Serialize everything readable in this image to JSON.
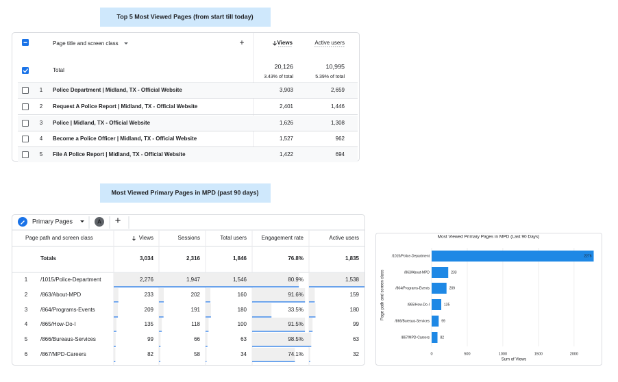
{
  "banner1": "Top 5 Most Viewed Pages (from start till today)",
  "table1": {
    "headers": [
      "Page title and screen class",
      "Views",
      "Active users"
    ],
    "total": {
      "label": "Total",
      "views": "20,126",
      "views_pct": "3.43% of total",
      "users": "10,995",
      "users_pct": "5.39% of total"
    },
    "rows": [
      [
        "1",
        "Police Department | Midland, TX - Official Website",
        "3,903",
        "2,659"
      ],
      [
        "2",
        "Request A Police Report | Midland, TX - Official Website",
        "2,401",
        "1,446"
      ],
      [
        "3",
        "Police | Midland, TX - Official Website",
        "1,626",
        "1,308"
      ],
      [
        "4",
        "Become a Police Officer | Midland, TX - Official Website",
        "1,527",
        "962"
      ],
      [
        "5",
        "File A Police Report | Midland, TX - Official Website",
        "1,422",
        "694"
      ]
    ]
  },
  "banner2": "Most Viewed Primary Pages in MPD (past 90 days)",
  "table2": {
    "tab": "Primary Pages",
    "badge": "A",
    "headers": [
      "Page path and screen class",
      "Views",
      "Sessions",
      "Total users",
      "Engagement rate",
      "Active users"
    ],
    "totals": [
      "Totals",
      "3,034",
      "2,316",
      "1,846",
      "76.8%",
      "1,835"
    ],
    "rows": [
      [
        "1",
        "/1015/Police-Department",
        "2,276",
        "1,947",
        "1,546",
        "80.9%",
        "1,538"
      ],
      [
        "2",
        "/863/About-MPD",
        "233",
        "202",
        "160",
        "91.6%",
        "159"
      ],
      [
        "3",
        "/864/Programs-Events",
        "209",
        "191",
        "180",
        "33.5%",
        "180"
      ],
      [
        "4",
        "/865/How-Do-I",
        "135",
        "118",
        "100",
        "91.5%",
        "99"
      ],
      [
        "5",
        "/866/Bureaus-Services",
        "99",
        "66",
        "63",
        "98.5%",
        "63"
      ],
      [
        "6",
        "/867/MPD-Careers",
        "82",
        "58",
        "34",
        "74.1%",
        "32"
      ]
    ]
  },
  "chart_data": {
    "type": "bar",
    "orientation": "horizontal",
    "title": "Most Viewed Primary Pages in MPD (Last 90 Days)",
    "categories": [
      "/1015/Police-Department",
      "/863/About-MPD",
      "/864/Programs-Events",
      "/865/How-Do-I",
      "/866/Bureaus-Services",
      "/867/MPD-Careers"
    ],
    "values": [
      2276,
      233,
      209,
      135,
      99,
      82
    ],
    "color": "#1e88e5",
    "xlim": [
      0,
      2300
    ],
    "xticks": [
      0,
      500,
      1000,
      1500,
      2000
    ],
    "xlabel": "Sum of Views",
    "ylabel": "Page path and screen class",
    "grid": true
  }
}
